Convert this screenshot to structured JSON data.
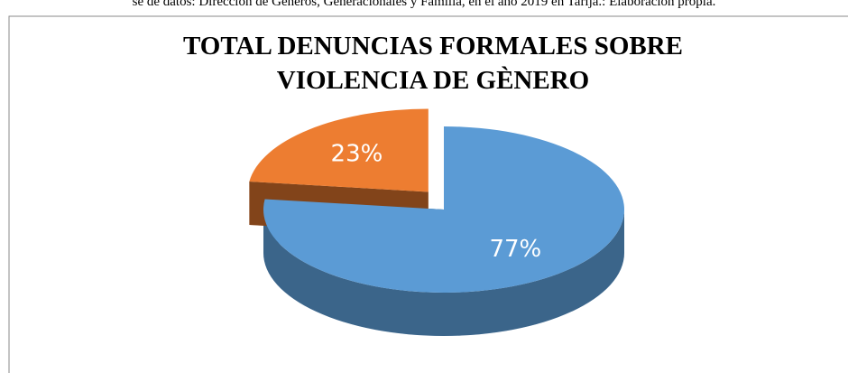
{
  "source": "se de datos: Dirección de Géneros, Generacionales y Familia, en el año 2019 en Tarija.: Elaboración propia.",
  "chart_data": {
    "type": "pie",
    "title": "TOTAL DENUNCIAS FORMALES SOBRE",
    "title_line2": "VIOLENCIA DE GÈNERO",
    "values": [
      77,
      23
    ],
    "value_labels": [
      "77%",
      "23%"
    ],
    "colors": [
      "#5b9bd5",
      "#ed7d31"
    ]
  }
}
